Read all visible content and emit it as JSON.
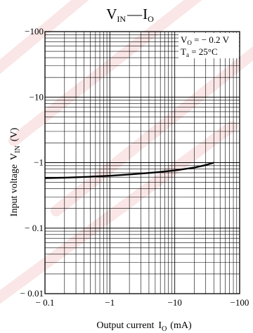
{
  "chart_data": {
    "type": "line",
    "title": {
      "left_main": "V",
      "left_sub": "IN",
      "separator": "—",
      "right_main": "I",
      "right_sub": "O"
    },
    "xlabel": {
      "text": "Output current",
      "symbol": "I",
      "sub": "O",
      "unit": "(mA)"
    },
    "ylabel": {
      "text": "Input voltage",
      "symbol": "V",
      "sub": "IN",
      "unit": "(V)"
    },
    "x_scale": "log",
    "y_scale": "log",
    "xlim": [
      -0.1,
      -100
    ],
    "ylim": [
      -0.01,
      -100
    ],
    "x_ticks": [
      {
        "value": -0.1,
        "label": "− 0.1"
      },
      {
        "value": -1,
        "label": "−1"
      },
      {
        "value": -10,
        "label": "−10"
      },
      {
        "value": -100,
        "label": "−100"
      }
    ],
    "y_ticks": [
      {
        "value": -0.01,
        "label": "− 0.01"
      },
      {
        "value": -0.1,
        "label": "− 0.1"
      },
      {
        "value": -1,
        "label": "−1"
      },
      {
        "value": -10,
        "label": "−10"
      },
      {
        "value": -100,
        "label": "−100"
      }
    ],
    "grid": true,
    "conditions": [
      {
        "main": "V",
        "sub": "O",
        "rest": " = − 0.2 V"
      },
      {
        "main": "T",
        "sub": "a",
        "rest": " = 25°C"
      }
    ],
    "series": [
      {
        "x": [
          -0.1,
          -0.2,
          -0.5,
          -1,
          -2,
          -5,
          -10,
          -20,
          -30,
          -40
        ],
        "y": [
          -0.58,
          -0.59,
          -0.61,
          -0.63,
          -0.66,
          -0.71,
          -0.76,
          -0.84,
          -0.92,
          -1.0
        ],
        "color": "#000000"
      }
    ],
    "watermark_color": "#f2b8b8"
  }
}
